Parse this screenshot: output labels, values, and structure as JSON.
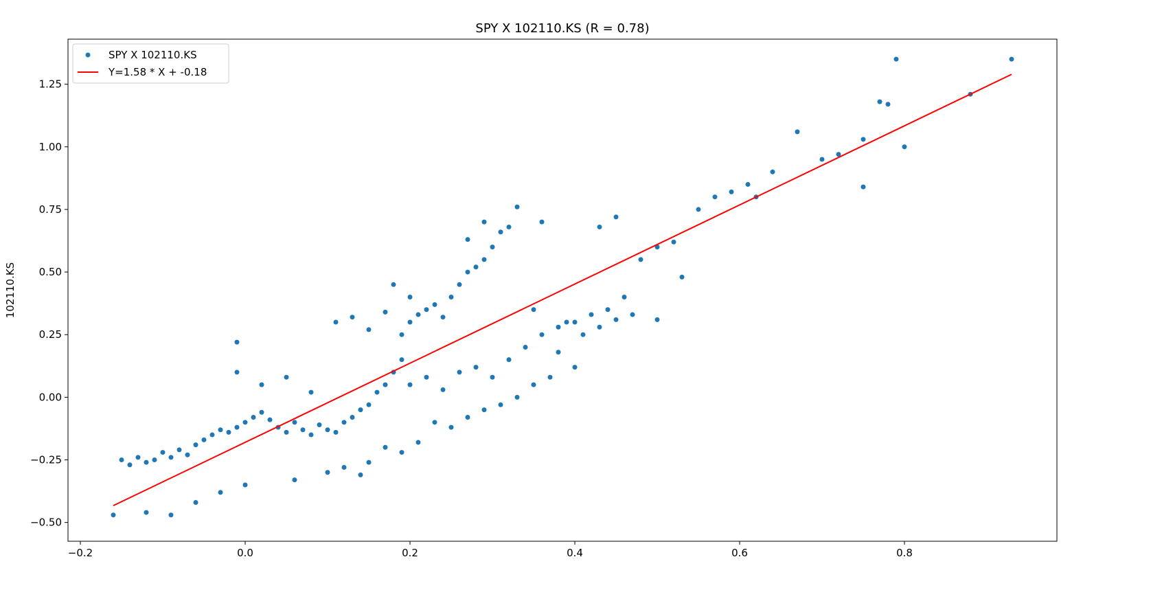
{
  "chart_data": {
    "type": "scatter",
    "title": "SPY X 102110.KS (R = 0.78)",
    "xlabel": "",
    "ylabel": "102110.KS",
    "xlim": [
      -0.215,
      0.985
    ],
    "ylim": [
      -0.575,
      1.43
    ],
    "x_ticks": [
      -0.2,
      0.0,
      0.2,
      0.4,
      0.6,
      0.8
    ],
    "x_tick_labels": [
      "−0.2",
      "0.0",
      "0.2",
      "0.4",
      "0.6",
      "0.8"
    ],
    "y_ticks": [
      -0.5,
      -0.25,
      0.0,
      0.25,
      0.5,
      0.75,
      1.0,
      1.25
    ],
    "y_tick_labels": [
      "−0.50",
      "−0.25",
      "0.00",
      "0.25",
      "0.50",
      "0.75",
      "1.00",
      "1.25"
    ],
    "grid": false,
    "legend_position": "top-left",
    "series": [
      {
        "name": "SPY X 102110.KS",
        "kind": "scatter",
        "color": "#1f77b4",
        "points": [
          [
            -0.16,
            -0.47
          ],
          [
            -0.15,
            -0.25
          ],
          [
            -0.14,
            -0.27
          ],
          [
            -0.13,
            -0.24
          ],
          [
            -0.12,
            -0.26
          ],
          [
            -0.11,
            -0.25
          ],
          [
            -0.1,
            -0.22
          ],
          [
            -0.09,
            -0.24
          ],
          [
            -0.08,
            -0.21
          ],
          [
            -0.07,
            -0.23
          ],
          [
            -0.06,
            -0.19
          ],
          [
            -0.05,
            -0.17
          ],
          [
            -0.04,
            -0.15
          ],
          [
            -0.03,
            -0.13
          ],
          [
            -0.02,
            -0.14
          ],
          [
            -0.01,
            -0.12
          ],
          [
            0.0,
            -0.1
          ],
          [
            0.01,
            -0.08
          ],
          [
            0.02,
            -0.06
          ],
          [
            0.03,
            -0.09
          ],
          [
            0.04,
            -0.12
          ],
          [
            0.05,
            -0.14
          ],
          [
            0.06,
            -0.1
          ],
          [
            0.07,
            -0.13
          ],
          [
            0.08,
            -0.15
          ],
          [
            0.09,
            -0.11
          ],
          [
            0.1,
            -0.13
          ],
          [
            0.11,
            -0.14
          ],
          [
            0.12,
            -0.1
          ],
          [
            0.13,
            -0.08
          ],
          [
            0.14,
            -0.05
          ],
          [
            0.15,
            -0.03
          ],
          [
            0.16,
            0.02
          ],
          [
            0.17,
            0.05
          ],
          [
            0.18,
            0.1
          ],
          [
            0.19,
            0.15
          ],
          [
            0.2,
            0.3
          ],
          [
            0.21,
            0.33
          ],
          [
            0.22,
            0.35
          ],
          [
            0.23,
            0.37
          ],
          [
            0.24,
            0.32
          ],
          [
            0.25,
            0.4
          ],
          [
            0.26,
            0.45
          ],
          [
            0.27,
            0.5
          ],
          [
            0.28,
            0.52
          ],
          [
            0.29,
            0.55
          ],
          [
            0.3,
            0.6
          ],
          [
            0.31,
            0.66
          ],
          [
            0.2,
            0.05
          ],
          [
            0.22,
            0.08
          ],
          [
            0.24,
            0.03
          ],
          [
            0.26,
            0.1
          ],
          [
            0.28,
            0.12
          ],
          [
            0.3,
            0.08
          ],
          [
            0.32,
            0.15
          ],
          [
            0.34,
            0.2
          ],
          [
            0.36,
            0.25
          ],
          [
            0.38,
            0.28
          ],
          [
            0.4,
            0.3
          ],
          [
            0.42,
            0.33
          ],
          [
            0.44,
            0.35
          ],
          [
            0.46,
            0.4
          ],
          [
            0.48,
            0.55
          ],
          [
            0.5,
            0.6
          ],
          [
            0.52,
            0.62
          ],
          [
            0.55,
            0.75
          ],
          [
            0.57,
            0.8
          ],
          [
            0.59,
            0.82
          ],
          [
            0.61,
            0.85
          ],
          [
            0.62,
            0.8
          ],
          [
            0.64,
            0.9
          ],
          [
            0.67,
            1.06
          ],
          [
            0.7,
            0.95
          ],
          [
            0.72,
            0.97
          ],
          [
            0.75,
            1.03
          ],
          [
            0.77,
            1.18
          ],
          [
            0.78,
            1.17
          ],
          [
            0.79,
            1.35
          ],
          [
            0.8,
            1.0
          ],
          [
            0.88,
            1.21
          ],
          [
            0.93,
            1.35
          ],
          [
            0.75,
            0.84
          ],
          [
            0.53,
            0.48
          ],
          [
            0.5,
            0.31
          ],
          [
            -0.01,
            0.22
          ],
          [
            -0.01,
            0.1
          ],
          [
            0.33,
            0.76
          ],
          [
            0.36,
            0.7
          ],
          [
            0.43,
            0.68
          ],
          [
            0.45,
            0.72
          ],
          [
            0.1,
            -0.3
          ],
          [
            0.12,
            -0.28
          ],
          [
            0.14,
            -0.31
          ],
          [
            0.06,
            -0.33
          ],
          [
            0.0,
            -0.35
          ],
          [
            -0.03,
            -0.38
          ],
          [
            -0.06,
            -0.42
          ],
          [
            -0.09,
            -0.47
          ],
          [
            -0.12,
            -0.46
          ],
          [
            0.02,
            0.05
          ],
          [
            0.05,
            0.08
          ],
          [
            0.08,
            0.02
          ],
          [
            0.11,
            0.3
          ],
          [
            0.13,
            0.32
          ],
          [
            0.15,
            0.27
          ],
          [
            0.17,
            0.34
          ],
          [
            0.19,
            0.25
          ],
          [
            0.23,
            -0.1
          ],
          [
            0.25,
            -0.12
          ],
          [
            0.27,
            -0.08
          ],
          [
            0.29,
            -0.05
          ],
          [
            0.31,
            -0.03
          ],
          [
            0.33,
            0.0
          ],
          [
            0.35,
            0.05
          ],
          [
            0.37,
            0.08
          ],
          [
            0.39,
            0.3
          ],
          [
            0.41,
            0.25
          ],
          [
            0.43,
            0.28
          ],
          [
            0.45,
            0.31
          ],
          [
            0.47,
            0.33
          ],
          [
            0.21,
            -0.18
          ],
          [
            0.19,
            -0.22
          ],
          [
            0.17,
            -0.2
          ],
          [
            0.15,
            -0.26
          ],
          [
            0.18,
            0.45
          ],
          [
            0.2,
            0.4
          ],
          [
            0.27,
            0.63
          ],
          [
            0.29,
            0.7
          ],
          [
            0.32,
            0.68
          ],
          [
            0.35,
            0.35
          ],
          [
            0.38,
            0.18
          ],
          [
            0.4,
            0.12
          ]
        ]
      },
      {
        "name": "Y=1.58 * X + -0.18",
        "kind": "line",
        "color": "#ff0000",
        "slope": 1.58,
        "intercept": -0.18,
        "x_range": [
          -0.16,
          0.93
        ]
      }
    ]
  }
}
